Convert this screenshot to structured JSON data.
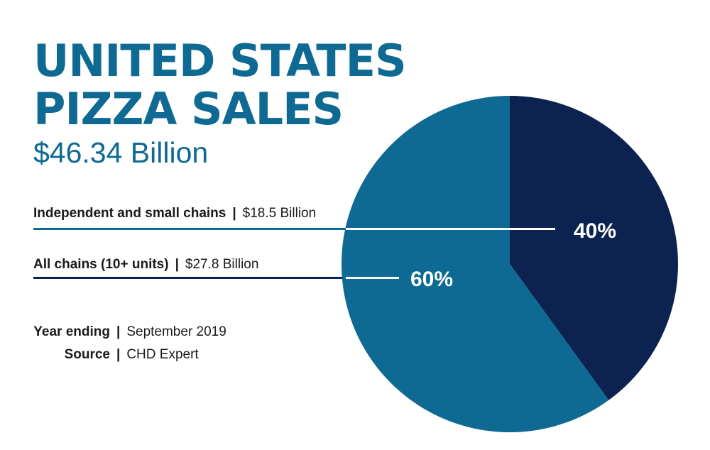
{
  "title_line1": "UNITED STATES",
  "title_line2": "PIZZA SALES",
  "total": "$46.34 Billion",
  "rows": [
    {
      "name": "Independent and small chains",
      "value": "$18.5 Billion"
    },
    {
      "name": "All chains (10+ units)",
      "value": "$27.8 Billion"
    }
  ],
  "meta": {
    "year_label": "Year ending",
    "year_value": "September 2019",
    "source_label": "Source",
    "source_value": "CHD Expert"
  },
  "separator": "|",
  "colors": {
    "title": "#0e6993",
    "independent": "#0c2250",
    "chains": "#0e6993"
  },
  "chart_data": {
    "type": "pie",
    "title": "UNITED STATES PIZZA SALES",
    "subtitle": "$46.34 Billion",
    "slices": [
      {
        "name": "Independent and small chains",
        "value": 40,
        "label": "40%",
        "amount": "$18.5 Billion",
        "color": "#0c2250"
      },
      {
        "name": "All chains (10+ units)",
        "value": 60,
        "label": "60%",
        "amount": "$27.8 Billion",
        "color": "#0e6993"
      }
    ]
  }
}
